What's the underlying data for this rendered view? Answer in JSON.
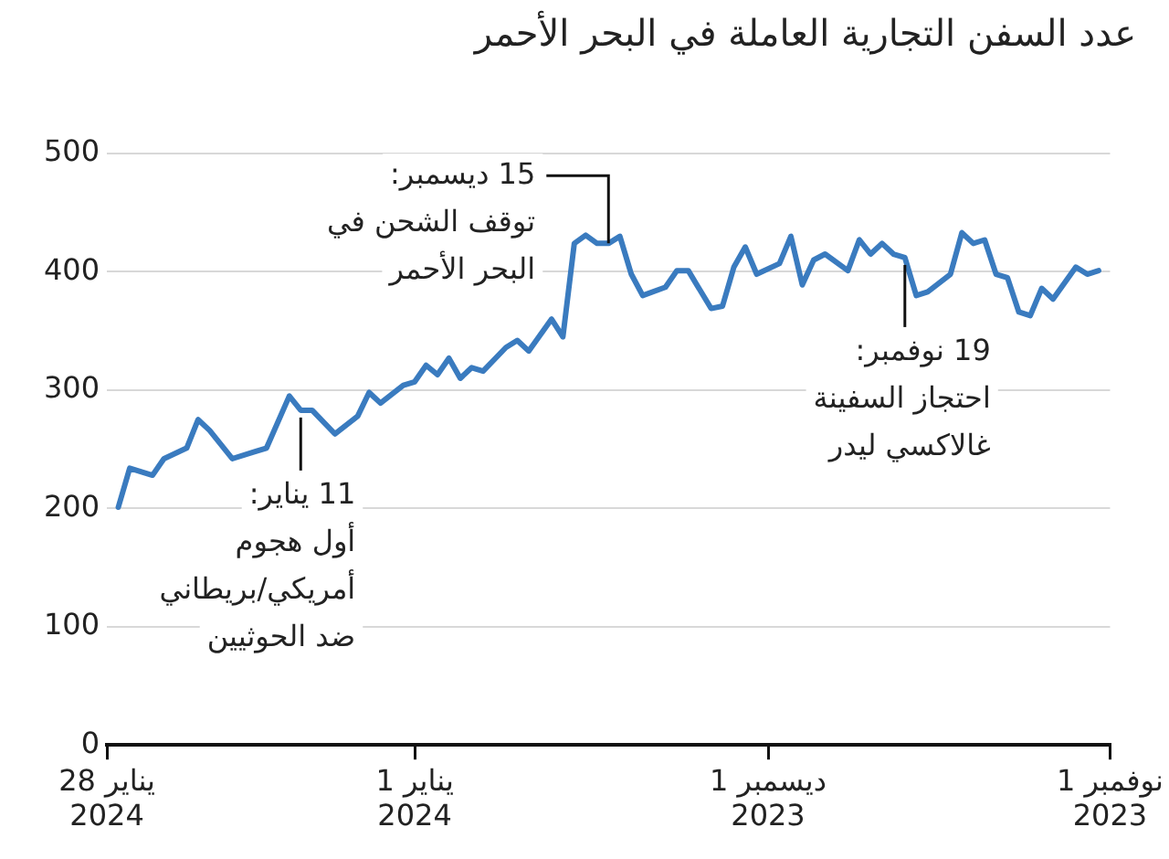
{
  "chart_data": {
    "type": "line",
    "title": "عدد السفن التجارية العاملة في البحر الأحمر",
    "x": [
      "2023-11-02",
      "2023-11-03",
      "2023-11-04",
      "2023-11-06",
      "2023-11-07",
      "2023-11-08",
      "2023-11-09",
      "2023-11-10",
      "2023-11-11",
      "2023-11-12",
      "2023-11-13",
      "2023-11-14",
      "2023-11-15",
      "2023-11-17",
      "2023-11-18",
      "2023-11-19",
      "2023-11-20",
      "2023-11-21",
      "2023-11-22",
      "2023-11-23",
      "2023-11-24",
      "2023-11-26",
      "2023-11-27",
      "2023-11-28",
      "2023-11-29",
      "2023-11-30",
      "2023-12-02",
      "2023-12-03",
      "2023-12-04",
      "2023-12-05",
      "2023-12-06",
      "2023-12-08",
      "2023-12-09",
      "2023-12-10",
      "2023-12-12",
      "2023-12-13",
      "2023-12-14",
      "2023-12-15",
      "2023-12-16",
      "2023-12-17",
      "2023-12-18",
      "2023-12-19",
      "2023-12-20",
      "2023-12-22",
      "2023-12-23",
      "2023-12-24",
      "2023-12-26",
      "2023-12-27",
      "2023-12-28",
      "2023-12-29",
      "2023-12-30",
      "2023-12-31",
      "2024-01-01",
      "2024-01-02",
      "2024-01-04",
      "2024-01-05",
      "2024-01-06",
      "2024-01-08",
      "2024-01-10",
      "2024-01-11",
      "2024-01-12",
      "2024-01-14",
      "2024-01-15",
      "2024-01-17",
      "2024-01-19",
      "2024-01-20",
      "2024-01-21",
      "2024-01-23",
      "2024-01-24",
      "2024-01-26",
      "2024-01-27"
    ],
    "series": [
      {
        "color": "#3a7bbf",
        "values": [
          401,
          398,
          404,
          377,
          386,
          363,
          366,
          395,
          398,
          427,
          424,
          433,
          398,
          383,
          380,
          412,
          415,
          424,
          415,
          427,
          401,
          415,
          410,
          389,
          430,
          407,
          398,
          421,
          404,
          371,
          369,
          401,
          401,
          387,
          380,
          398,
          430,
          424,
          424,
          431,
          424,
          345,
          360,
          333,
          342,
          336,
          316,
          319,
          310,
          327,
          313,
          321,
          307,
          304,
          289,
          298,
          278,
          263,
          283,
          283,
          295,
          251,
          248,
          242,
          266,
          275,
          251,
          242,
          228,
          234,
          201
        ]
      }
    ],
    "xlim": [
      "2024-01-28",
      "2023-11-01"
    ],
    "xticks": [
      {
        "value": "2024-01-28",
        "label": "28 يناير\n2024"
      },
      {
        "value": "2024-01-01",
        "label": "1 يناير\n2024"
      },
      {
        "value": "2023-12-01",
        "label": "1 ديسمبر\n2023"
      },
      {
        "value": "2023-11-01",
        "label": "1 نوفمبر\n2023"
      }
    ],
    "ylim": [
      0,
      500
    ],
    "yticks": [
      0,
      100,
      200,
      300,
      400,
      500
    ],
    "grid": "y",
    "legend": false,
    "marker": "none",
    "line_style": "solid",
    "annotations": [
      {
        "text": "15 ديسمبر:\nتوقف الشحن في\nالبحر الأحمر",
        "x": "2023-12-15",
        "y": 424
      },
      {
        "text": "11 يناير:\nأول هجوم\nأمريكي/بريطاني\nضد الحوثيين",
        "x": "2024-01-11",
        "y": 283
      },
      {
        "text": "19 نوفمبر:\nاحتجاز السفينة\nغالاكسي ليدر",
        "x": "2023-11-19",
        "y": 412
      }
    ]
  }
}
